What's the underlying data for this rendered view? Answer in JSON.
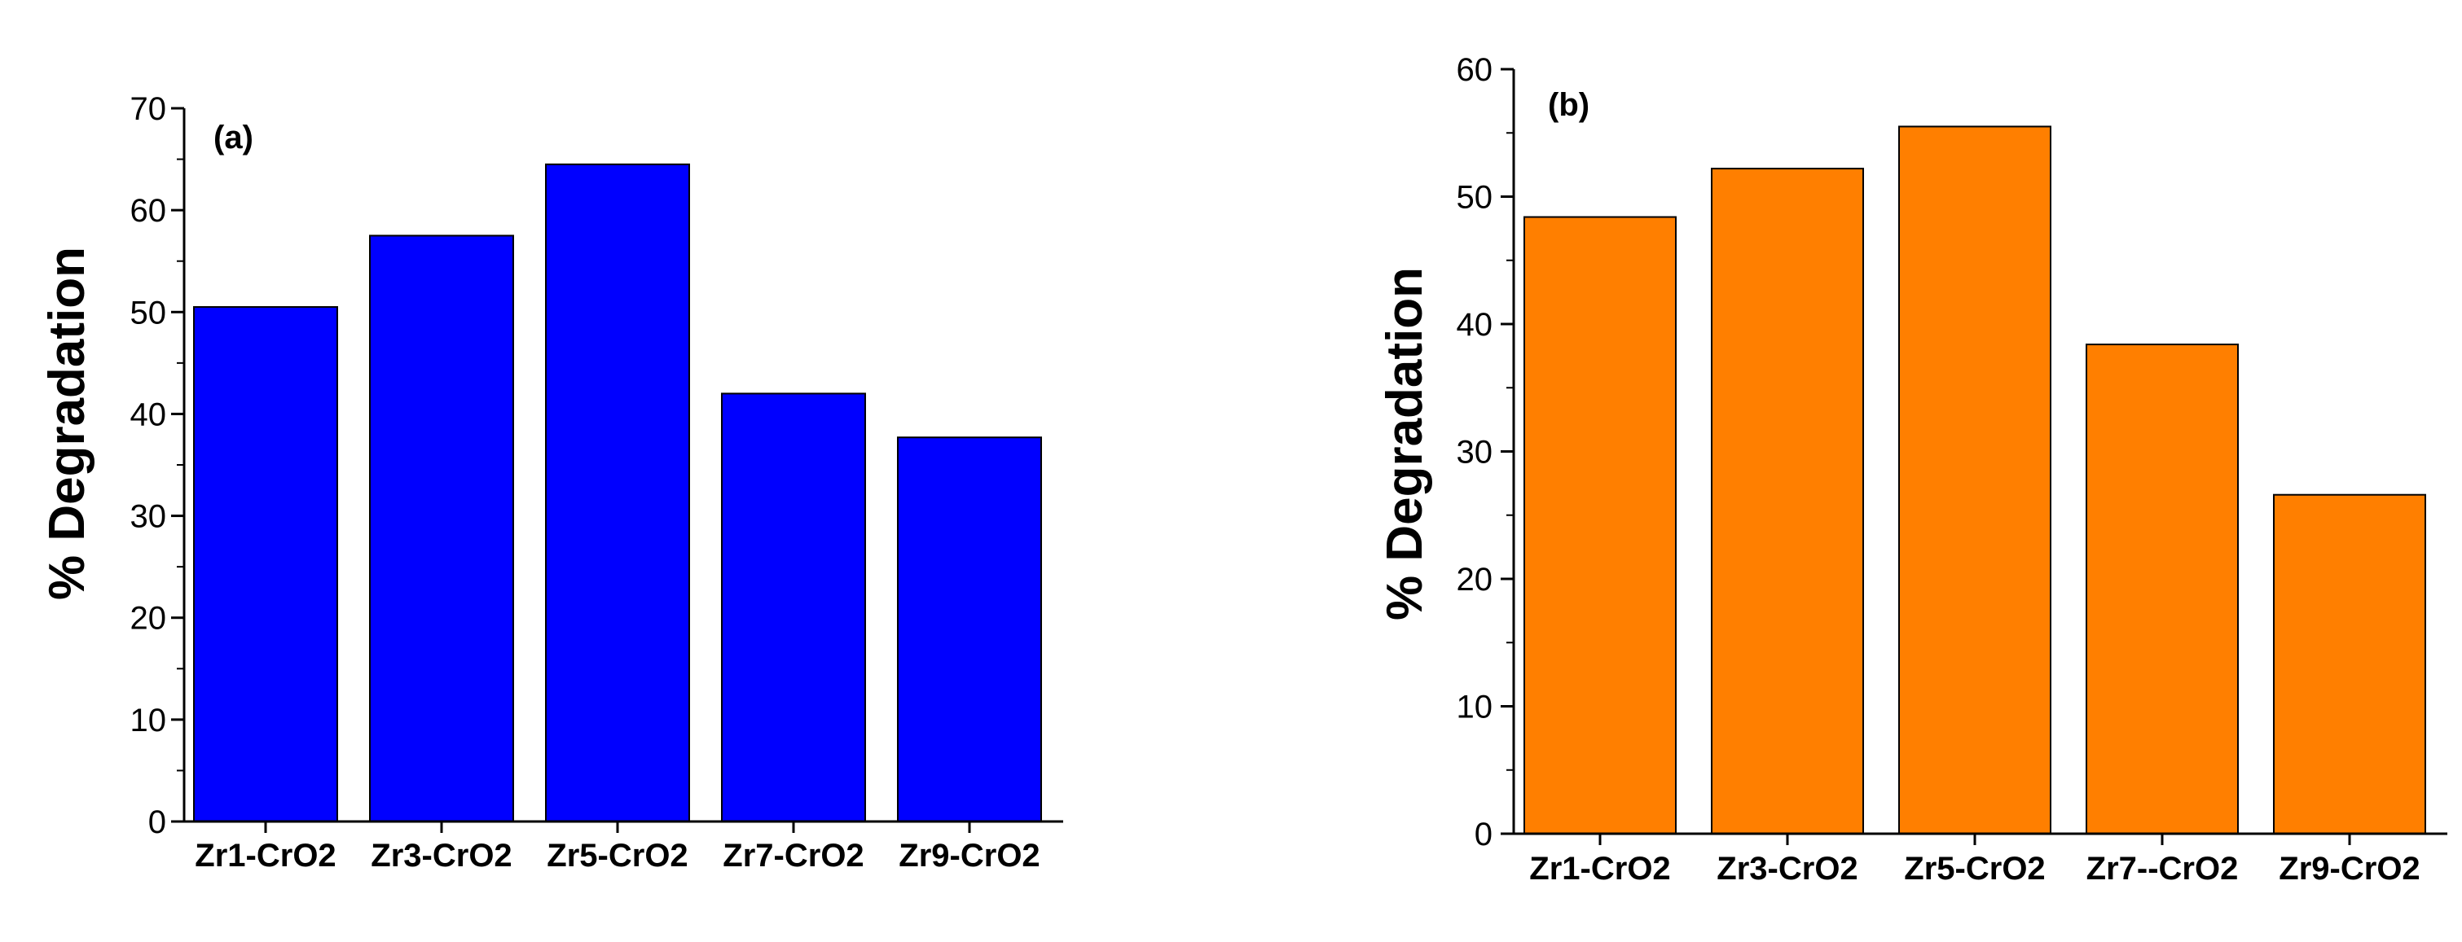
{
  "chart_data": [
    {
      "type": "bar",
      "panel_label": "(a)",
      "title": "",
      "xlabel": "",
      "ylabel": "% Degradation",
      "ylim": [
        0,
        70
      ],
      "yticks": [
        0,
        10,
        20,
        30,
        40,
        50,
        60,
        70
      ],
      "categories": [
        "Zr1-CrO2",
        "Zr3-CrO2",
        "Zr5-CrO2",
        "Zr7-CrO2",
        "Zr9-CrO2"
      ],
      "values": [
        50.5,
        57.5,
        64.5,
        42.0,
        37.7
      ],
      "bar_color": "#0000FF",
      "grid": false
    },
    {
      "type": "bar",
      "panel_label": "(b)",
      "title": "",
      "xlabel": "",
      "ylabel": "% Degradation",
      "ylim": [
        0,
        60
      ],
      "yticks": [
        0,
        10,
        20,
        30,
        40,
        50,
        60
      ],
      "categories": [
        "Zr1-CrO2",
        "Zr3-CrO2",
        "Zr5-CrO2",
        "Zr7--CrO2",
        "Zr9-CrO2"
      ],
      "values": [
        48.4,
        52.2,
        55.5,
        38.4,
        26.6
      ],
      "bar_color": "#FF7F00",
      "grid": false
    }
  ]
}
